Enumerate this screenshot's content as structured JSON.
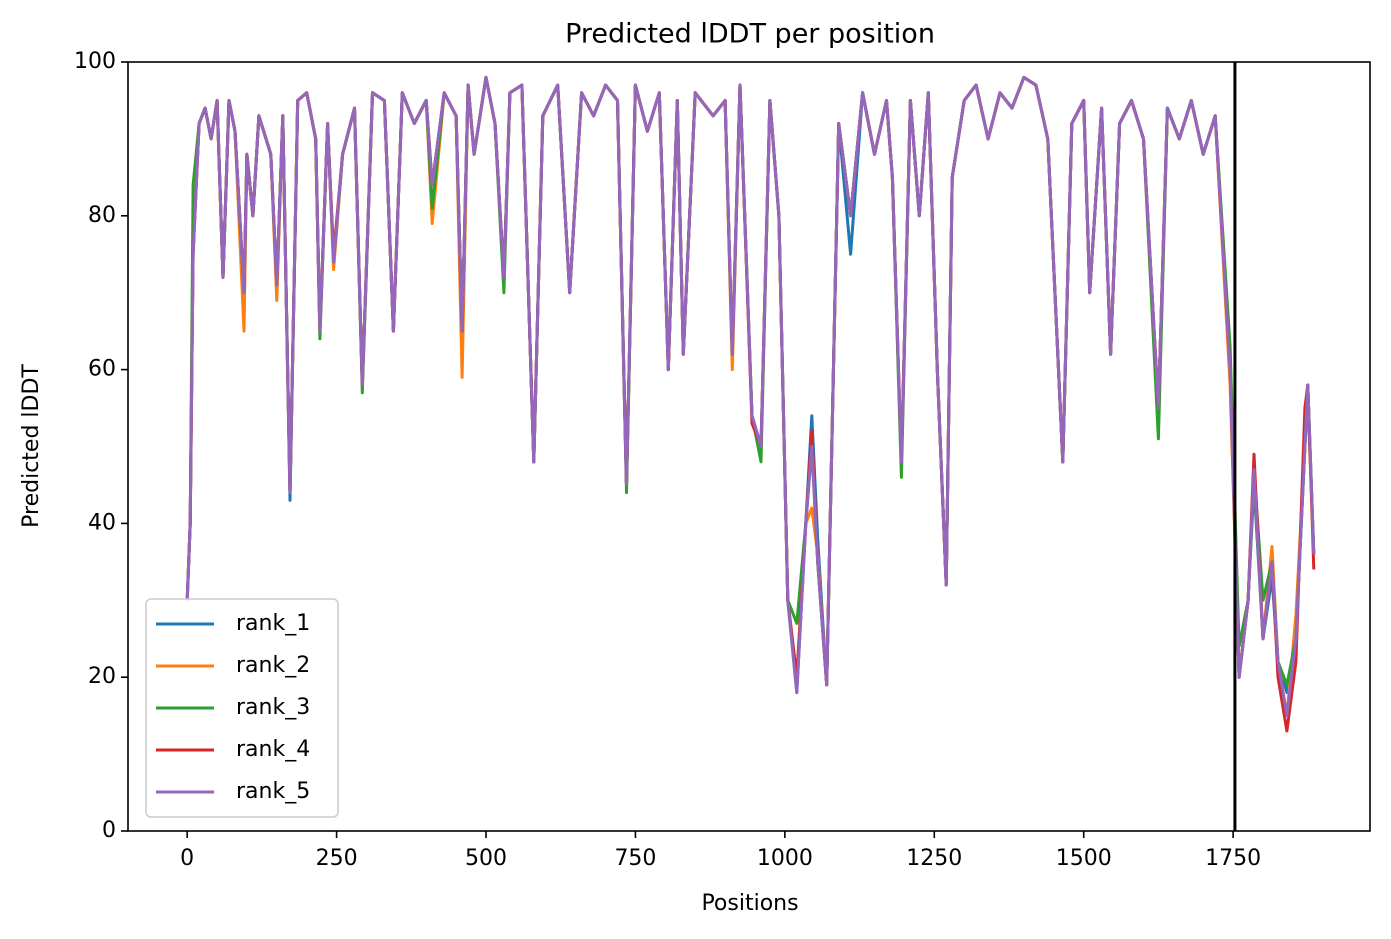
{
  "chart_data": {
    "type": "line",
    "title": "Predicted lDDT per position",
    "xlabel": "Positions",
    "ylabel": "Predicted lDDT",
    "x": [
      0,
      5,
      10,
      20,
      30,
      40,
      50,
      60,
      70,
      80,
      95,
      100,
      110,
      120,
      140,
      150,
      160,
      172,
      185,
      200,
      215,
      222,
      235,
      245,
      260,
      280,
      293,
      310,
      330,
      345,
      360,
      380,
      400,
      410,
      430,
      450,
      460,
      470,
      480,
      500,
      515,
      530,
      540,
      560,
      580,
      595,
      620,
      640,
      660,
      680,
      700,
      720,
      735,
      750,
      770,
      790,
      805,
      820,
      830,
      850,
      880,
      900,
      912,
      925,
      945,
      960,
      975,
      990,
      1005,
      1020,
      1035,
      1045,
      1055,
      1070,
      1090,
      1110,
      1130,
      1150,
      1170,
      1180,
      1195,
      1210,
      1225,
      1240,
      1255,
      1270,
      1280,
      1300,
      1320,
      1340,
      1360,
      1380,
      1400,
      1420,
      1440,
      1465,
      1480,
      1500,
      1510,
      1530,
      1545,
      1560,
      1580,
      1600,
      1625,
      1640,
      1660,
      1680,
      1700,
      1720,
      1745,
      1760,
      1775,
      1785,
      1800,
      1815,
      1825,
      1840,
      1855,
      1870,
      1875,
      1885
    ],
    "series": [
      {
        "name": "rank_1",
        "color": "#1f77b4",
        "values": [
          30,
          40,
          76,
          92,
          94,
          90,
          95,
          72,
          95,
          91,
          70,
          88,
          80,
          93,
          88,
          71,
          93,
          43,
          95,
          96,
          90,
          65,
          92,
          74,
          88,
          94,
          58,
          96,
          95,
          65,
          96,
          92,
          95,
          84,
          96,
          93,
          65,
          97,
          88,
          98,
          92,
          72,
          96,
          97,
          48,
          93,
          97,
          70,
          96,
          93,
          97,
          95,
          45,
          97,
          91,
          96,
          60,
          95,
          62,
          96,
          93,
          95,
          62,
          97,
          54,
          50,
          95,
          80,
          30,
          18,
          40,
          54,
          38,
          19,
          92,
          75,
          96,
          88,
          95,
          85,
          48,
          95,
          80,
          96,
          60,
          32,
          85,
          95,
          97,
          90,
          96,
          94,
          98,
          97,
          90,
          48,
          92,
          95,
          70,
          94,
          62,
          92,
          95,
          90,
          55,
          94,
          90,
          95,
          88,
          93,
          60,
          20,
          30,
          45,
          25,
          33,
          22,
          18,
          25,
          50,
          58,
          36
        ]
      },
      {
        "name": "rank_2",
        "color": "#ff7f0e",
        "values": [
          30,
          40,
          75,
          92,
          94,
          90,
          95,
          72,
          95,
          91,
          65,
          88,
          80,
          93,
          88,
          69,
          93,
          44,
          95,
          96,
          90,
          65,
          92,
          73,
          88,
          94,
          58,
          96,
          95,
          65,
          96,
          92,
          95,
          79,
          96,
          93,
          59,
          97,
          88,
          98,
          92,
          72,
          96,
          97,
          48,
          93,
          97,
          70,
          96,
          93,
          97,
          95,
          45,
          97,
          91,
          96,
          60,
          95,
          62,
          96,
          93,
          95,
          60,
          97,
          54,
          50,
          95,
          80,
          30,
          20,
          40,
          42,
          36,
          19,
          92,
          80,
          96,
          88,
          95,
          85,
          48,
          95,
          80,
          96,
          60,
          32,
          85,
          95,
          97,
          90,
          96,
          94,
          98,
          97,
          90,
          48,
          92,
          95,
          70,
          94,
          62,
          92,
          95,
          90,
          55,
          94,
          90,
          95,
          88,
          93,
          58,
          20,
          30,
          47,
          25,
          37,
          22,
          15,
          28,
          50,
          56,
          36
        ]
      },
      {
        "name": "rank_3",
        "color": "#2ca02c",
        "values": [
          30,
          40,
          84,
          92,
          94,
          90,
          95,
          72,
          95,
          91,
          70,
          88,
          80,
          93,
          88,
          71,
          93,
          44,
          95,
          96,
          90,
          64,
          92,
          74,
          88,
          94,
          57,
          96,
          95,
          65,
          96,
          92,
          95,
          81,
          96,
          93,
          65,
          97,
          88,
          98,
          92,
          70,
          96,
          97,
          48,
          93,
          97,
          70,
          96,
          93,
          97,
          95,
          44,
          97,
          91,
          96,
          60,
          95,
          62,
          96,
          93,
          95,
          62,
          97,
          54,
          48,
          95,
          80,
          30,
          27,
          40,
          50,
          35,
          19,
          92,
          80,
          96,
          88,
          95,
          85,
          46,
          95,
          80,
          96,
          60,
          32,
          85,
          95,
          97,
          90,
          96,
          94,
          98,
          97,
          90,
          48,
          92,
          95,
          70,
          94,
          62,
          92,
          95,
          90,
          51,
          94,
          90,
          95,
          88,
          93,
          63,
          24,
          30,
          47,
          30,
          35,
          22,
          19,
          25,
          50,
          58,
          36
        ]
      },
      {
        "name": "rank_4",
        "color": "#d62728",
        "values": [
          30,
          40,
          75,
          92,
          94,
          90,
          95,
          72,
          95,
          91,
          70,
          88,
          80,
          93,
          88,
          71,
          93,
          44,
          95,
          96,
          90,
          65,
          92,
          75,
          88,
          94,
          58,
          96,
          95,
          65,
          96,
          92,
          95,
          84,
          96,
          93,
          65,
          97,
          88,
          98,
          92,
          72,
          96,
          97,
          48,
          93,
          97,
          70,
          96,
          93,
          97,
          95,
          45,
          97,
          91,
          96,
          60,
          95,
          62,
          96,
          93,
          95,
          62,
          97,
          53,
          50,
          95,
          80,
          30,
          20,
          40,
          52,
          35,
          19,
          92,
          80,
          96,
          88,
          95,
          85,
          48,
          95,
          80,
          96,
          60,
          32,
          85,
          95,
          97,
          90,
          96,
          94,
          98,
          97,
          90,
          48,
          92,
          95,
          70,
          94,
          62,
          92,
          95,
          90,
          55,
          94,
          90,
          95,
          88,
          93,
          60,
          20,
          30,
          49,
          25,
          35,
          20,
          13,
          22,
          55,
          58,
          34
        ]
      },
      {
        "name": "rank_5",
        "color": "#9467bd",
        "values": [
          30,
          40,
          75,
          92,
          94,
          90,
          95,
          72,
          95,
          91,
          70,
          88,
          80,
          93,
          88,
          71,
          93,
          44,
          95,
          96,
          90,
          65,
          92,
          74,
          88,
          94,
          58,
          96,
          95,
          65,
          96,
          92,
          95,
          84,
          96,
          93,
          65,
          97,
          88,
          98,
          92,
          72,
          96,
          97,
          48,
          93,
          97,
          70,
          96,
          93,
          97,
          95,
          45,
          97,
          91,
          96,
          60,
          95,
          62,
          96,
          93,
          95,
          62,
          97,
          54,
          50,
          95,
          80,
          30,
          18,
          40,
          50,
          35,
          19,
          92,
          80,
          96,
          88,
          95,
          85,
          48,
          95,
          80,
          96,
          60,
          32,
          85,
          95,
          97,
          90,
          96,
          94,
          98,
          97,
          90,
          48,
          92,
          95,
          70,
          94,
          62,
          92,
          95,
          90,
          55,
          94,
          90,
          95,
          88,
          93,
          60,
          20,
          30,
          47,
          25,
          35,
          22,
          15,
          25,
          50,
          58,
          36
        ]
      }
    ],
    "vline": 1753,
    "vline_color": "#000000",
    "xlim": [
      -99,
      1979
    ],
    "xticks": [
      0,
      250,
      500,
      750,
      1000,
      1250,
      1500,
      1750
    ],
    "ylim": [
      0,
      100
    ],
    "yticks": [
      0,
      20,
      40,
      60,
      80,
      100
    ],
    "legend": "lower left"
  }
}
